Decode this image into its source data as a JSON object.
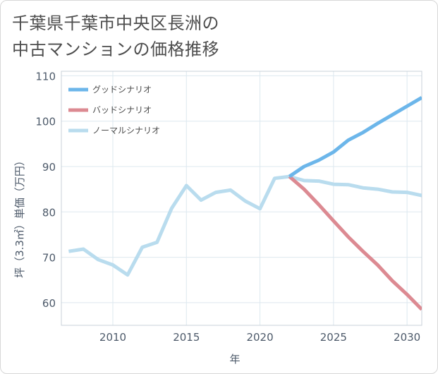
{
  "title": {
    "line1": "千葉県千葉市中央区長洲の",
    "line2": "中古マンションの価格推移"
  },
  "chart_data": {
    "type": "line",
    "xlabel": "年",
    "ylabel": "坪（3.3㎡）単価（万円）",
    "xlim": [
      2006.5,
      2031
    ],
    "ylim": [
      55,
      111
    ],
    "x_ticks": [
      2010,
      2015,
      2020,
      2025,
      2030
    ],
    "y_ticks": [
      60,
      70,
      80,
      90,
      100,
      110
    ],
    "x_tick_labels": [
      "2010",
      "2015",
      "2020",
      "2025",
      "2030"
    ],
    "y_tick_labels": [
      "60",
      "70",
      "80",
      "90",
      "100",
      "110"
    ],
    "grid": true,
    "legend_position": "top-left",
    "series": [
      {
        "name": "グッドシナリオ",
        "color": "#6cb6ea",
        "x": [
          2022,
          2023,
          2024,
          2025,
          2026,
          2027,
          2028,
          2029,
          2030,
          2031
        ],
        "y": [
          87.8,
          90.0,
          91.4,
          93.2,
          95.8,
          97.5,
          99.5,
          101.4,
          103.3,
          105.2
        ]
      },
      {
        "name": "バッドシナリオ",
        "color": "#dc8a92",
        "x": [
          2022,
          2023,
          2024,
          2025,
          2026,
          2027,
          2028,
          2029,
          2030,
          2031
        ],
        "y": [
          87.8,
          85.0,
          81.6,
          78.0,
          74.5,
          71.3,
          68.3,
          64.8,
          61.8,
          58.5
        ]
      },
      {
        "name": "ノーマルシナリオ",
        "color": "#b9dcee",
        "x": [
          2007,
          2008,
          2009,
          2010,
          2011,
          2012,
          2013,
          2014,
          2015,
          2016,
          2017,
          2018,
          2019,
          2020,
          2021,
          2022,
          2023,
          2024,
          2025,
          2026,
          2027,
          2028,
          2029,
          2030,
          2031
        ],
        "y": [
          71.3,
          71.8,
          69.5,
          68.3,
          66.1,
          72.2,
          73.3,
          80.8,
          85.8,
          82.6,
          84.3,
          84.8,
          82.4,
          80.7,
          87.4,
          87.8,
          86.9,
          86.8,
          86.1,
          86.0,
          85.3,
          85.0,
          84.4,
          84.3,
          83.6
        ]
      }
    ]
  }
}
